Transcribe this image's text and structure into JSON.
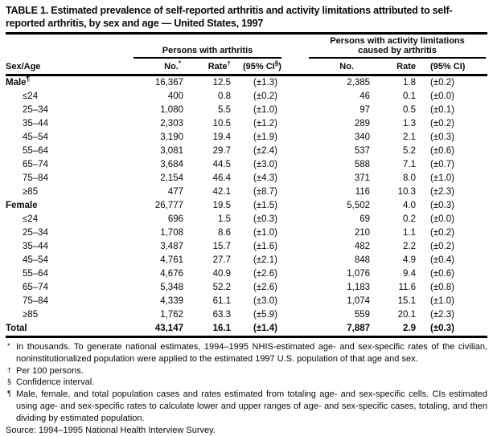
{
  "title": "TABLE 1. Estimated prevalence of self-reported arthritis and activity limitations attributed to self-reported arthritis, by sex and age — United States, 1997",
  "table": {
    "sex_age_header": "Sex/Age",
    "groups": [
      {
        "label": "Persons with arthritis",
        "columns": [
          {
            "text": "No.",
            "sup": "*",
            "suffix": ""
          },
          {
            "text": "Rate",
            "sup": "†",
            "suffix": ""
          },
          {
            "text": "(95% CI",
            "sup": "§",
            "suffix": ")"
          }
        ]
      },
      {
        "label": "Persons with activity limitations caused by arthritis",
        "columns": [
          {
            "text": "No.",
            "sup": "",
            "suffix": ""
          },
          {
            "text": "Rate",
            "sup": "",
            "suffix": ""
          },
          {
            "text": "(95% CI)",
            "sup": "",
            "suffix": ""
          }
        ]
      }
    ],
    "rows": [
      {
        "label": "Male",
        "sup": "¶",
        "style": "group",
        "cells": [
          "16,367",
          "12.5",
          "(±1.3)",
          "2,385",
          "1.8",
          "(±0.2)"
        ]
      },
      {
        "label": "≤24",
        "sup": "",
        "style": "age",
        "cells": [
          "400",
          "0.8",
          "(±0.2)",
          "46",
          "0.1",
          "(±0.0)"
        ]
      },
      {
        "label": "25–34",
        "sup": "",
        "style": "age",
        "cells": [
          "1,080",
          "5.5",
          "(±1.0)",
          "97",
          "0.5",
          "(±0.1)"
        ]
      },
      {
        "label": "35–44",
        "sup": "",
        "style": "age",
        "cells": [
          "2,303",
          "10.5",
          "(±1.2)",
          "289",
          "1.3",
          "(±0.2)"
        ]
      },
      {
        "label": "45–54",
        "sup": "",
        "style": "age",
        "cells": [
          "3,190",
          "19.4",
          "(±1.9)",
          "340",
          "2.1",
          "(±0.3)"
        ]
      },
      {
        "label": "55–64",
        "sup": "",
        "style": "age",
        "cells": [
          "3,081",
          "29.7",
          "(±2.4)",
          "537",
          "5.2",
          "(±0.6)"
        ]
      },
      {
        "label": "65–74",
        "sup": "",
        "style": "age",
        "cells": [
          "3,684",
          "44.5",
          "(±3.0)",
          "588",
          "7.1",
          "(±0.7)"
        ]
      },
      {
        "label": "75–84",
        "sup": "",
        "style": "age",
        "cells": [
          "2,154",
          "46.4",
          "(±4.3)",
          "371",
          "8.0",
          "(±1.0)"
        ]
      },
      {
        "label": "≥85",
        "sup": "",
        "style": "age",
        "cells": [
          "477",
          "42.1",
          "(±8.7)",
          "116",
          "10.3",
          "(±2.3)"
        ]
      },
      {
        "label": "Female",
        "sup": "",
        "style": "group",
        "cells": [
          "26,777",
          "19.5",
          "(±1.5)",
          "5,502",
          "4.0",
          "(±0.3)"
        ]
      },
      {
        "label": "≤24",
        "sup": "",
        "style": "age",
        "cells": [
          "696",
          "1.5",
          "(±0.3)",
          "69",
          "0.2",
          "(±0.0)"
        ]
      },
      {
        "label": "25–34",
        "sup": "",
        "style": "age",
        "cells": [
          "1,708",
          "8.6",
          "(±1.0)",
          "210",
          "1.1",
          "(±0.2)"
        ]
      },
      {
        "label": "35–44",
        "sup": "",
        "style": "age",
        "cells": [
          "3,487",
          "15.7",
          "(±1.6)",
          "482",
          "2.2",
          "(±0.2)"
        ]
      },
      {
        "label": "45–54",
        "sup": "",
        "style": "age",
        "cells": [
          "4,761",
          "27.7",
          "(±2.1)",
          "848",
          "4.9",
          "(±0.4)"
        ]
      },
      {
        "label": "55–64",
        "sup": "",
        "style": "age",
        "cells": [
          "4,676",
          "40.9",
          "(±2.6)",
          "1,076",
          "9.4",
          "(±0.6)"
        ]
      },
      {
        "label": "65–74",
        "sup": "",
        "style": "age",
        "cells": [
          "5,348",
          "52.2",
          "(±2.6)",
          "1,183",
          "11.6",
          "(±0.8)"
        ]
      },
      {
        "label": "75–84",
        "sup": "",
        "style": "age",
        "cells": [
          "4,339",
          "61.1",
          "(±3.0)",
          "1,074",
          "15.1",
          "(±1.0)"
        ]
      },
      {
        "label": "≥85",
        "sup": "",
        "style": "age",
        "cells": [
          "1,762",
          "63.3",
          "(±5.9)",
          "559",
          "20.1",
          "(±2.3)"
        ]
      },
      {
        "label": "Total",
        "sup": "",
        "style": "total",
        "cells": [
          "43,147",
          "16.1",
          "(±1.4)",
          "7,887",
          "2.9",
          "(±0.3)"
        ]
      }
    ]
  },
  "footnotes": [
    {
      "marker": "*",
      "text": "In thousands. To generate national estimates, 1994–1995 NHIS-estimated age- and sex-specific rates of the civilian, noninstitutionalized population were applied to the estimated 1997 U.S. population of that age and sex."
    },
    {
      "marker": "†",
      "text": "Per 100 persons."
    },
    {
      "marker": "§",
      "text": "Confidence interval."
    },
    {
      "marker": "¶",
      "text": "Male, female, and total population cases and rates estimated from totaling age- and sex-specific cells. CIs estimated using age- and sex-specific rates to calculate lower and upper ranges of age- and sex-specific cases, totaling, and then dividing by estimated population."
    },
    {
      "marker": "",
      "text": "Source: 1994–1995 National Health Interview Survey."
    }
  ],
  "colors": {
    "text": "#0a0a0a",
    "rule": "#000000",
    "background": "#fefefe"
  }
}
